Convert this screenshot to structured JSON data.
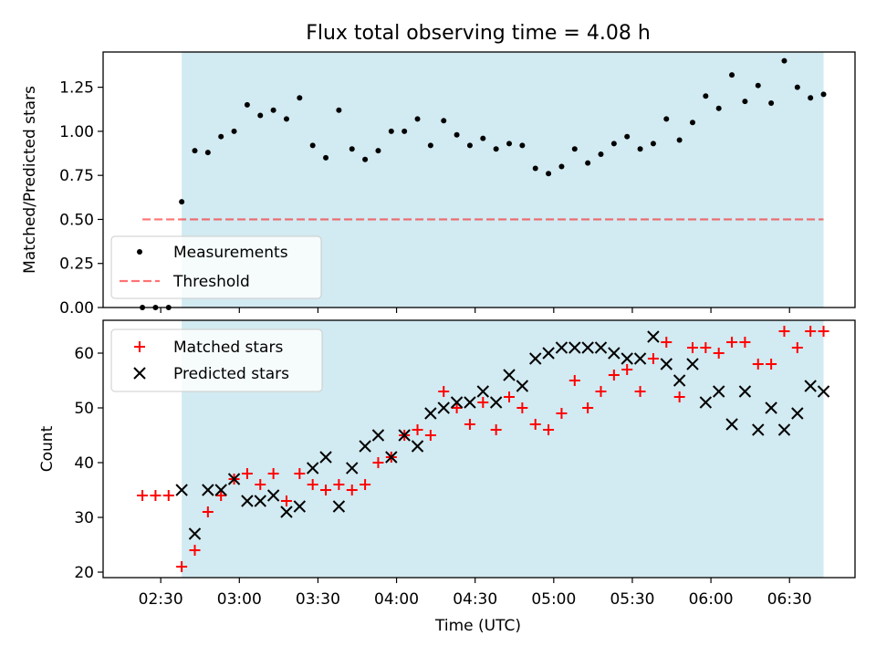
{
  "colors": {
    "observing_band": "#add8e6",
    "measurement": "#000000",
    "threshold": "#ff0000",
    "matched": "#ff0000",
    "predicted": "#000000",
    "frame": "#000000"
  },
  "chart_data": [
    {
      "type": "scatter",
      "title": "Flux total observing time = 4.08 h",
      "xlabel": "",
      "ylabel": "Matched/Predicted stars",
      "xlim": [
        "02:08",
        "06:55"
      ],
      "ylim": [
        0,
        1.45
      ],
      "yticks": [
        "0.00",
        "0.25",
        "0.50",
        "0.75",
        "1.00",
        "1.25"
      ],
      "grid": false,
      "legend_placement": "lower-left",
      "observing_window": [
        "02:38",
        "06:43"
      ],
      "threshold": {
        "name": "Threshold",
        "value": 0.5,
        "x": [
          "02:23",
          "06:43"
        ]
      },
      "series": [
        {
          "name": "Measurements",
          "x": [
            "02:23",
            "02:28",
            "02:33",
            "02:38",
            "02:43",
            "02:48",
            "02:53",
            "02:58",
            "03:03",
            "03:08",
            "03:13",
            "03:18",
            "03:23",
            "03:28",
            "03:33",
            "03:38",
            "03:43",
            "03:48",
            "03:53",
            "03:58",
            "04:03",
            "04:08",
            "04:13",
            "04:18",
            "04:23",
            "04:28",
            "04:33",
            "04:38",
            "04:43",
            "04:48",
            "04:53",
            "04:58",
            "05:03",
            "05:08",
            "05:13",
            "05:18",
            "05:23",
            "05:28",
            "05:33",
            "05:38",
            "05:43",
            "05:48",
            "05:53",
            "05:58",
            "06:03",
            "06:08",
            "06:13",
            "06:18",
            "06:23",
            "06:28",
            "06:33",
            "06:38",
            "06:43"
          ],
          "y": [
            0.0,
            0.0,
            0.0,
            0.6,
            0.89,
            0.88,
            0.97,
            1.0,
            1.15,
            1.09,
            1.12,
            1.07,
            1.19,
            0.92,
            0.85,
            1.12,
            0.9,
            0.84,
            0.89,
            1.0,
            1.0,
            1.07,
            0.92,
            1.06,
            0.98,
            0.92,
            0.96,
            0.9,
            0.93,
            0.92,
            0.79,
            0.76,
            0.8,
            0.9,
            0.82,
            0.87,
            0.93,
            0.97,
            0.9,
            0.93,
            1.07,
            0.95,
            1.05,
            1.2,
            1.13,
            1.32,
            1.17,
            1.26,
            1.16,
            1.4,
            1.25,
            1.19,
            1.21
          ]
        }
      ]
    },
    {
      "type": "scatter",
      "title": "",
      "xlabel": "Time (UTC)",
      "ylabel": "Count",
      "xlim": [
        "02:08",
        "06:55"
      ],
      "ylim": [
        19,
        66
      ],
      "yticks": [
        "20",
        "30",
        "40",
        "50",
        "60"
      ],
      "xticks": [
        "02:30",
        "03:00",
        "03:30",
        "04:00",
        "04:30",
        "05:00",
        "05:30",
        "06:00",
        "06:30"
      ],
      "grid": false,
      "legend_placement": "top-left",
      "observing_window": [
        "02:38",
        "06:43"
      ],
      "series": [
        {
          "name": "Matched stars",
          "marker": "+",
          "x": [
            "02:23",
            "02:28",
            "02:33",
            "02:38",
            "02:43",
            "02:48",
            "02:53",
            "02:58",
            "03:03",
            "03:08",
            "03:13",
            "03:18",
            "03:23",
            "03:28",
            "03:33",
            "03:38",
            "03:43",
            "03:48",
            "03:53",
            "03:58",
            "04:03",
            "04:08",
            "04:13",
            "04:18",
            "04:23",
            "04:28",
            "04:33",
            "04:38",
            "04:43",
            "04:48",
            "04:53",
            "04:58",
            "05:03",
            "05:08",
            "05:13",
            "05:18",
            "05:23",
            "05:28",
            "05:33",
            "05:38",
            "05:43",
            "05:48",
            "05:53",
            "05:58",
            "06:03",
            "06:08",
            "06:13",
            "06:18",
            "06:23",
            "06:28",
            "06:33",
            "06:38",
            "06:43"
          ],
          "y": [
            34,
            34,
            34,
            21,
            24,
            31,
            34,
            37,
            38,
            36,
            38,
            33,
            38,
            36,
            35,
            36,
            35,
            36,
            40,
            41,
            45,
            46,
            45,
            53,
            50,
            47,
            51,
            46,
            52,
            50,
            47,
            46,
            49,
            55,
            50,
            53,
            56,
            57,
            53,
            59,
            62,
            52,
            61,
            61,
            60,
            62,
            62,
            58,
            58,
            64,
            61,
            64,
            64
          ]
        },
        {
          "name": "Predicted stars",
          "marker": "x",
          "x": [
            "02:38",
            "02:43",
            "02:48",
            "02:53",
            "02:58",
            "03:03",
            "03:08",
            "03:13",
            "03:18",
            "03:23",
            "03:28",
            "03:33",
            "03:38",
            "03:43",
            "03:48",
            "03:53",
            "03:58",
            "04:03",
            "04:08",
            "04:13",
            "04:18",
            "04:23",
            "04:28",
            "04:33",
            "04:38",
            "04:43",
            "04:48",
            "04:53",
            "04:58",
            "05:03",
            "05:08",
            "05:13",
            "05:18",
            "05:23",
            "05:28",
            "05:33",
            "05:38",
            "05:43",
            "05:48",
            "05:53",
            "05:58",
            "06:03",
            "06:08",
            "06:13",
            "06:18",
            "06:23",
            "06:28",
            "06:33",
            "06:38",
            "06:43"
          ],
          "y": [
            35,
            27,
            35,
            35,
            37,
            33,
            33,
            34,
            31,
            32,
            39,
            41,
            32,
            39,
            43,
            45,
            41,
            45,
            43,
            49,
            50,
            51,
            51,
            53,
            51,
            56,
            54,
            59,
            60,
            61,
            61,
            61,
            61,
            60,
            59,
            59,
            63,
            58,
            55,
            58,
            51,
            53,
            47,
            53,
            46,
            50,
            46,
            49,
            54,
            53
          ]
        }
      ]
    }
  ]
}
